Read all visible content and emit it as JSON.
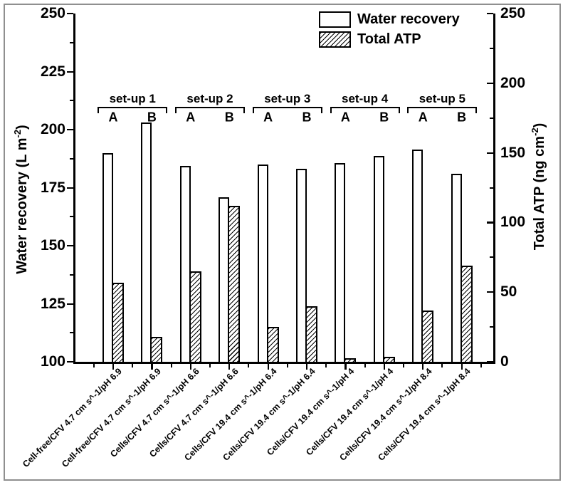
{
  "figure": {
    "background": "#ffffff",
    "border_color": "#8f8f8f",
    "ink_color": "#000000"
  },
  "legend": {
    "position": "top-right",
    "items": [
      {
        "label": "Water recovery",
        "swatch": "open-bar"
      },
      {
        "label": "Total ATP",
        "swatch": "hatched-bar"
      }
    ]
  },
  "left_axis_title": {
    "main": "Water recovery (L m",
    "sup": "-2",
    "close": ")"
  },
  "right_axis_title": {
    "main": "Total ATP (ng cm",
    "sup": "-2",
    "close": ")"
  },
  "chart_data": {
    "type": "bar",
    "title": "",
    "grid": false,
    "legend_position": "top-right inside plot",
    "categories": [
      "Cell-free/CFV 4.7 cm s^-1/pH 6.9",
      "Cell-free/CFV 4.7 cm s^-1/pH 6.9",
      "Cells/CFV 4.7 cm s^-1/pH 6.6",
      "Cells/CFV 4.7 cm s^-1/pH 6.6",
      "Cells/CFV 19.4 cm s^-1/pH 6.4",
      "Cells/CFV 19.4 cm s^-1/pH 6.4",
      "Cells/CFV 19.4 cm s^-1/pH 4",
      "Cells/CFV 19.4 cm s^-1/pH 4",
      "Cells/CFV 19.4 cm s^-1/pH 8.4",
      "Cells/CFV 19.4 cm s^-1/pH 8.4"
    ],
    "groups": [
      {
        "label": "set-up 1",
        "members": [
          "A",
          "B"
        ]
      },
      {
        "label": "set-up 2",
        "members": [
          "A",
          "B"
        ]
      },
      {
        "label": "set-up 3",
        "members": [
          "A",
          "B"
        ]
      },
      {
        "label": "set-up 4",
        "members": [
          "A",
          "B"
        ]
      },
      {
        "label": "set-up 5",
        "members": [
          "A",
          "B"
        ]
      }
    ],
    "series": [
      {
        "name": "Water recovery",
        "axis": "left",
        "style": "open",
        "values": [
          190,
          203,
          184.5,
          171,
          185,
          183,
          185.5,
          188.5,
          191.5,
          181
        ]
      },
      {
        "name": "Total ATP",
        "axis": "right",
        "style": "hatched",
        "values": [
          57,
          18,
          65,
          112,
          25,
          40,
          2.5,
          3.5,
          37,
          69
        ]
      }
    ],
    "left_axis": {
      "title": "Water recovery (L m-2)",
      "range": [
        100,
        250
      ],
      "ticks": [
        100,
        125,
        150,
        175,
        200,
        225,
        250
      ],
      "minor_ticks": [
        112.5,
        137.5,
        162.5,
        187.5,
        212.5,
        237.5
      ]
    },
    "right_axis": {
      "title": "Total ATP (ng cm-2)",
      "range": [
        0,
        250
      ],
      "ticks": [
        0,
        50,
        100,
        150,
        200,
        250
      ],
      "minor_ticks": [
        25,
        75,
        125,
        175,
        225
      ]
    }
  }
}
